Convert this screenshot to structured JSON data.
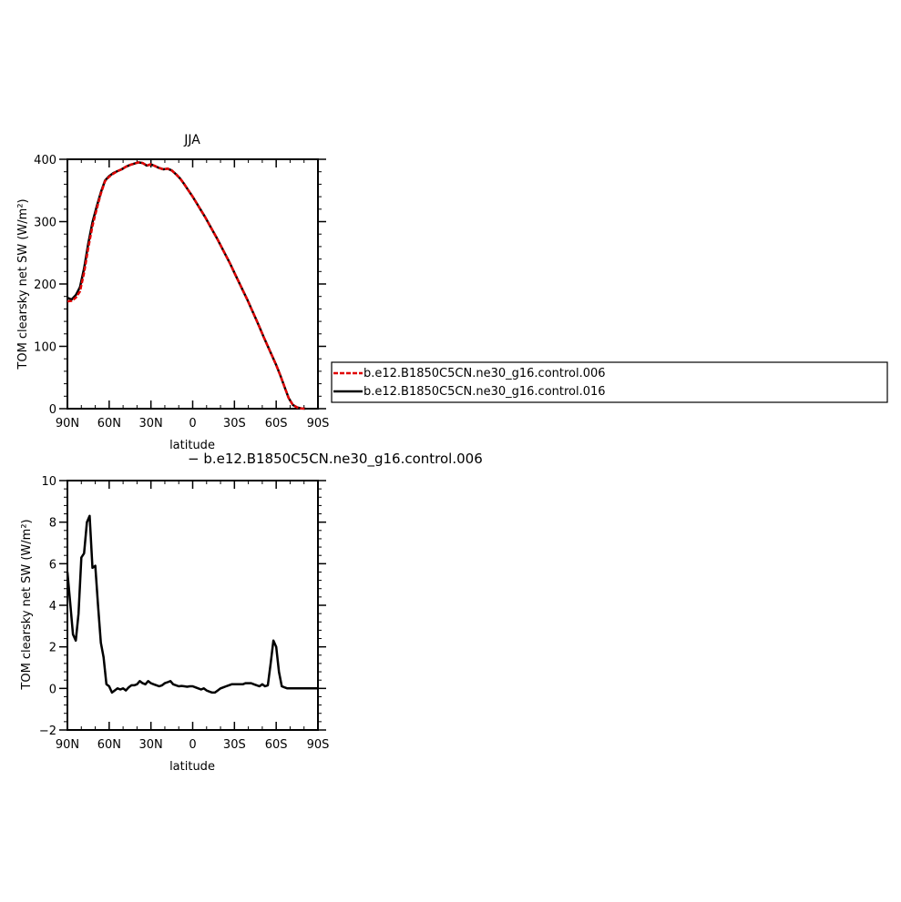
{
  "chart_data": [
    {
      "type": "line",
      "title": "JJA",
      "xlabel": "latitude",
      "ylabel": "TOM clearsky net SW (W/m²)",
      "xlim": [
        90,
        -90
      ],
      "ylim": [
        0,
        400
      ],
      "x_ticks": [
        {
          "value": 90,
          "label": "90N"
        },
        {
          "value": 60,
          "label": "60N"
        },
        {
          "value": 30,
          "label": "30N"
        },
        {
          "value": 0,
          "label": "0"
        },
        {
          "value": -30,
          "label": "30S"
        },
        {
          "value": -60,
          "label": "60S"
        },
        {
          "value": -90,
          "label": "90S"
        }
      ],
      "y_ticks": [
        {
          "value": 0,
          "label": "0"
        },
        {
          "value": 100,
          "label": "100"
        },
        {
          "value": 200,
          "label": "200"
        },
        {
          "value": 300,
          "label": "300"
        },
        {
          "value": 400,
          "label": "400"
        }
      ],
      "legend": "right",
      "series": [
        {
          "name": "b.e12.B1850C5CN.ne30_g16.control.006",
          "color": "#e00000",
          "dashed": true,
          "x": [
            90,
            87,
            84,
            81,
            78,
            75,
            72,
            69,
            66,
            63,
            60,
            57,
            54,
            51,
            48,
            45,
            42,
            39,
            36,
            33,
            30,
            27,
            24,
            21,
            18,
            15,
            12,
            9,
            6,
            3,
            0,
            -3,
            -6,
            -9,
            -12,
            -15,
            -18,
            -21,
            -24,
            -27,
            -30,
            -33,
            -36,
            -39,
            -42,
            -45,
            -48,
            -51,
            -54,
            -57,
            -60,
            -63,
            -66,
            -69,
            -72,
            -75,
            -78,
            -81
          ],
          "y": [
            172,
            173,
            178,
            188,
            218,
            258,
            293,
            320,
            345,
            365,
            372,
            377,
            381,
            384,
            388,
            391,
            393,
            395,
            394,
            390,
            392,
            389,
            386,
            384,
            385,
            382,
            376,
            369,
            360,
            350,
            340,
            329,
            318,
            307,
            295,
            283,
            271,
            258,
            245,
            232,
            218,
            204,
            190,
            176,
            161,
            146,
            131,
            115,
            100,
            85,
            70,
            53,
            35,
            17,
            6,
            2,
            0.5,
            0
          ]
        },
        {
          "name": "b.e12.B1850C5CN.ne30_g16.control.016",
          "color": "#000000",
          "dashed": false,
          "x": [
            90,
            87,
            84,
            81,
            78,
            75,
            72,
            69,
            66,
            63,
            60,
            57,
            54,
            51,
            48,
            45,
            42,
            39,
            36,
            33,
            30,
            27,
            24,
            21,
            18,
            15,
            12,
            9,
            6,
            3,
            0,
            -3,
            -6,
            -9,
            -12,
            -15,
            -18,
            -21,
            -24,
            -27,
            -30,
            -33,
            -36,
            -39,
            -42,
            -45,
            -48,
            -51,
            -54,
            -57,
            -60,
            -63,
            -66,
            -69,
            -72,
            -75,
            -78,
            -81
          ],
          "y": [
            178,
            175,
            182,
            195,
            225,
            265,
            299,
            324,
            347,
            366,
            373,
            378,
            381,
            384,
            388,
            391,
            393,
            395,
            394,
            390,
            392,
            389,
            386,
            384,
            385,
            382,
            376,
            369,
            360,
            350,
            340,
            329,
            318,
            307,
            295,
            283,
            271,
            258,
            245,
            232,
            218,
            204,
            190,
            176,
            161,
            146,
            131,
            115,
            100,
            85,
            70,
            53,
            35,
            17,
            6,
            2,
            0.5,
            0
          ]
        }
      ]
    },
    {
      "type": "line",
      "title": "",
      "annotation": "− b.e12.B1850C5CN.ne30_g16.control.006",
      "xlabel": "latitude",
      "ylabel": "TOM clearsky net SW (W/m²)",
      "xlim": [
        90,
        -90
      ],
      "ylim": [
        -2,
        10
      ],
      "x_ticks": [
        {
          "value": 90,
          "label": "90N"
        },
        {
          "value": 60,
          "label": "60N"
        },
        {
          "value": 30,
          "label": "30N"
        },
        {
          "value": 0,
          "label": "0"
        },
        {
          "value": -30,
          "label": "30S"
        },
        {
          "value": -60,
          "label": "60S"
        },
        {
          "value": -90,
          "label": "90S"
        }
      ],
      "y_ticks": [
        {
          "value": -2,
          "label": "−2"
        },
        {
          "value": 0,
          "label": "0"
        },
        {
          "value": 2,
          "label": "2"
        },
        {
          "value": 4,
          "label": "4"
        },
        {
          "value": 6,
          "label": "6"
        },
        {
          "value": 8,
          "label": "8"
        },
        {
          "value": 10,
          "label": "10"
        }
      ],
      "series": [
        {
          "color": "#000000",
          "dashed": false,
          "x": [
            90,
            88,
            86,
            84,
            82,
            80,
            78,
            76,
            74,
            72,
            70,
            68,
            66,
            64,
            62,
            60,
            58,
            56,
            54,
            52,
            50,
            48,
            46,
            44,
            42,
            40,
            38,
            36,
            34,
            32,
            30,
            28,
            26,
            24,
            22,
            20,
            18,
            16,
            14,
            12,
            10,
            8,
            6,
            4,
            2,
            0,
            -2,
            -4,
            -6,
            -8,
            -10,
            -12,
            -14,
            -16,
            -18,
            -20,
            -22,
            -24,
            -26,
            -28,
            -30,
            -32,
            -34,
            -36,
            -38,
            -40,
            -42,
            -44,
            -46,
            -48,
            -50,
            -52,
            -54,
            -56,
            -58,
            -60,
            -62,
            -64,
            -66,
            -68,
            -70,
            -72,
            -74,
            -76,
            -78,
            -80,
            -82,
            -84,
            -86,
            -88,
            -90
          ],
          "y": [
            5.6,
            4.1,
            2.6,
            2.3,
            3.6,
            6.3,
            6.5,
            8.0,
            8.3,
            5.8,
            5.9,
            4.0,
            2.2,
            1.5,
            0.2,
            0.1,
            -0.2,
            -0.1,
            0.0,
            -0.05,
            0.0,
            -0.1,
            0.05,
            0.15,
            0.15,
            0.2,
            0.35,
            0.25,
            0.2,
            0.35,
            0.25,
            0.2,
            0.15,
            0.1,
            0.15,
            0.25,
            0.3,
            0.35,
            0.2,
            0.15,
            0.1,
            0.12,
            0.1,
            0.08,
            0.1,
            0.1,
            0.05,
            0.0,
            -0.05,
            0.0,
            -0.1,
            -0.15,
            -0.2,
            -0.2,
            -0.1,
            0.0,
            0.05,
            0.1,
            0.15,
            0.2,
            0.2,
            0.2,
            0.2,
            0.2,
            0.25,
            0.25,
            0.25,
            0.2,
            0.15,
            0.1,
            0.2,
            0.1,
            0.15,
            1.2,
            2.3,
            2.0,
            0.8,
            0.1,
            0.05,
            0.0,
            0.0,
            0.0,
            0.0,
            0.0,
            0.0,
            0.0,
            0.0,
            0.0,
            0.0,
            0.0,
            0.0
          ]
        }
      ]
    }
  ]
}
